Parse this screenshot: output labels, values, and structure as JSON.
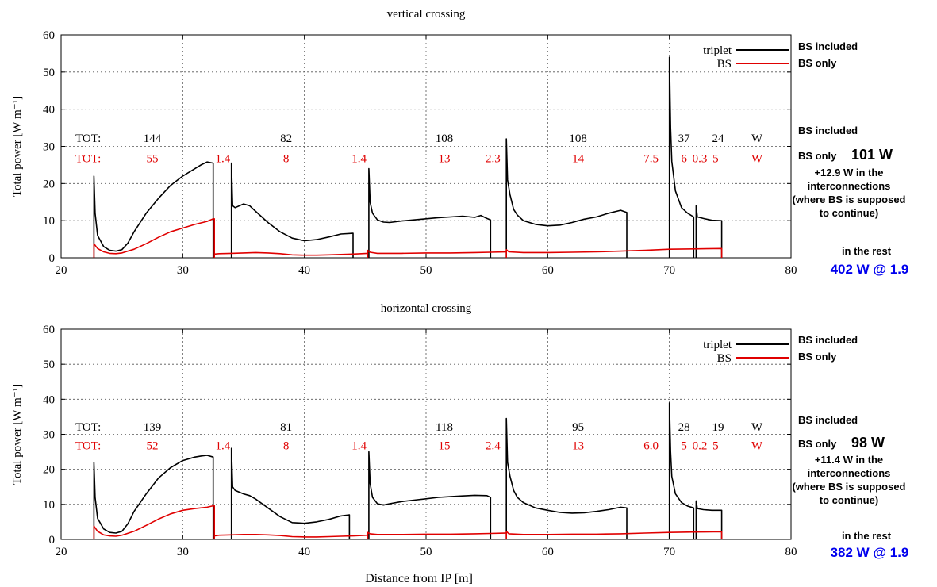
{
  "colors": {
    "triplet": "#000000",
    "bs": "#e00000",
    "rest": "#0000ee",
    "grid": "#555555"
  },
  "xlabel": "Distance from IP [m]",
  "ylabel": "Total power [W m⁻¹]",
  "chart_data": [
    {
      "type": "line",
      "title": "vertical crossing",
      "xlim": [
        20,
        80
      ],
      "ylim": [
        0,
        60
      ],
      "xticks": [
        "20",
        "30",
        "40",
        "50",
        "60",
        "70",
        "80"
      ],
      "yticks": [
        "0",
        "10",
        "20",
        "30",
        "40",
        "50",
        "60"
      ],
      "grid": true,
      "legend": "top-right",
      "series": [
        {
          "name": "triplet",
          "color": "#000000",
          "segments": [
            {
              "x": [
                22.7,
                22.8,
                23.0,
                23.5,
                24.0,
                24.5,
                25.0,
                25.5,
                26,
                27,
                28,
                29,
                30,
                31,
                31.5,
                32.0,
                32.5
              ],
              "y": [
                22,
                12,
                6,
                3,
                2,
                1.8,
                2.2,
                4,
                7,
                12,
                16,
                19.5,
                22,
                24,
                25,
                25.8,
                25.5
              ],
              "end": 0
            },
            {
              "x": [
                34.0,
                34.1,
                34.3,
                35,
                35.5,
                36,
                37,
                38,
                39,
                40,
                41,
                42,
                43,
                44.0
              ],
              "y": [
                25.5,
                14,
                13.5,
                14.5,
                14,
                12.5,
                9.5,
                7,
                5.3,
                4.6,
                4.9,
                5.6,
                6.4,
                6.6
              ],
              "end": 0
            },
            {
              "x": [
                45.3,
                45.4,
                45.6,
                46,
                46.5,
                47,
                48,
                49,
                50,
                51,
                52,
                53,
                54,
                54.5,
                55.0,
                55.3
              ],
              "y": [
                24,
                15,
                12,
                10.2,
                9.6,
                9.5,
                9.9,
                10.2,
                10.5,
                10.8,
                11,
                11.2,
                10.9,
                11.4,
                10.6,
                10.2
              ],
              "end": 0
            },
            {
              "x": [
                56.6,
                56.7,
                56.9,
                57.2,
                57.5,
                58,
                59,
                60,
                61,
                62,
                63,
                64,
                65,
                66,
                66.5
              ],
              "y": [
                32,
                21,
                17,
                13,
                11.5,
                10,
                9,
                8.6,
                8.8,
                9.5,
                10.4,
                11,
                12,
                12.8,
                12.2
              ],
              "end": 0
            },
            {
              "x": [
                70.0,
                70.1,
                70.2,
                70.5,
                71,
                71.5,
                72.0
              ],
              "y": [
                54,
                35,
                26,
                18,
                13.5,
                12,
                11
              ],
              "end": 0
            },
            {
              "x": [
                72.2,
                72.3,
                72.8,
                73.5,
                74.3
              ],
              "y": [
                14,
                11,
                10.6,
                10.1,
                10
              ],
              "end": 0
            }
          ]
        },
        {
          "name": "BS",
          "color": "#e00000",
          "segments": [
            {
              "x": [
                22.7,
                23.0,
                23.5,
                24.0,
                24.5,
                25,
                26,
                27,
                28,
                29,
                30,
                31,
                32,
                32.5,
                32.6
              ],
              "y": [
                3.8,
                2.5,
                1.6,
                1.2,
                1.1,
                1.3,
                2.3,
                3.8,
                5.5,
                7,
                8,
                9,
                9.8,
                10.5,
                10.5
              ],
              "end": 1
            },
            {
              "x": [
                32.6,
                33,
                34,
                35,
                36,
                37,
                38,
                39,
                40,
                41,
                42,
                43,
                44,
                45.2
              ],
              "y": [
                1,
                1.1,
                1.2,
                1.3,
                1.4,
                1.3,
                1.1,
                0.8,
                0.7,
                0.7,
                0.8,
                0.9,
                1.0,
                1.2
              ],
              "end": null
            },
            {
              "x": [
                45.2,
                45.4,
                46,
                48,
                50,
                52,
                54,
                55.3,
                56.6
              ],
              "y": [
                2,
                1.5,
                1.2,
                1.2,
                1.3,
                1.3,
                1.4,
                1.5,
                1.6
              ],
              "end": null
            },
            {
              "x": [
                56.6,
                56.8,
                58,
                60,
                62,
                64,
                66,
                68,
                70,
                72,
                74.3
              ],
              "y": [
                2.2,
                1.6,
                1.4,
                1.4,
                1.5,
                1.6,
                1.8,
                2.0,
                2.3,
                2.4,
                2.5
              ],
              "end": 0
            }
          ]
        }
      ],
      "tot_rows": [
        {
          "label": "TOT:",
          "color": "#000000",
          "items": [
            {
              "x": 27.5,
              "text": "144"
            },
            {
              "x": 38.5,
              "text": "82"
            },
            {
              "x": 51.5,
              "text": "108"
            },
            {
              "x": 62.5,
              "text": "108"
            },
            {
              "x": 71.2,
              "text": "37"
            },
            {
              "x": 74.0,
              "text": "24"
            },
            {
              "x": 77.2,
              "text": "W"
            }
          ]
        },
        {
          "label": "TOT:",
          "color": "#e00000",
          "items": [
            {
              "x": 27.5,
              "text": "55"
            },
            {
              "x": 33.3,
              "text": "1.4"
            },
            {
              "x": 38.5,
              "text": "8"
            },
            {
              "x": 44.5,
              "text": "1.4"
            },
            {
              "x": 51.5,
              "text": "13"
            },
            {
              "x": 55.5,
              "text": "2.3"
            },
            {
              "x": 62.5,
              "text": "14"
            },
            {
              "x": 68.5,
              "text": "7.5"
            },
            {
              "x": 71.2,
              "text": "6"
            },
            {
              "x": 72.5,
              "text": "0.3"
            },
            {
              "x": 73.8,
              "text": "5"
            },
            {
              "x": 77.2,
              "text": "W"
            }
          ]
        }
      ]
    },
    {
      "type": "line",
      "title": "horizontal crossing",
      "xlim": [
        20,
        80
      ],
      "ylim": [
        0,
        60
      ],
      "xticks": [
        "20",
        "30",
        "40",
        "50",
        "60",
        "70",
        "80"
      ],
      "yticks": [
        "0",
        "10",
        "20",
        "30",
        "40",
        "50",
        "60"
      ],
      "grid": true,
      "legend": "top-right",
      "series": [
        {
          "name": "triplet",
          "color": "#000000",
          "segments": [
            {
              "x": [
                22.7,
                22.8,
                23.0,
                23.5,
                24.0,
                24.5,
                25.0,
                25.5,
                26,
                27,
                28,
                29,
                30,
                31,
                31.5,
                32.0,
                32.5
              ],
              "y": [
                22,
                12,
                6,
                3,
                2,
                1.8,
                2.3,
                4.5,
                8,
                13,
                17.5,
                20.5,
                22.5,
                23.5,
                23.8,
                24,
                23.5
              ],
              "end": 0
            },
            {
              "x": [
                34.0,
                34.1,
                34.3,
                35,
                35.5,
                36,
                37,
                38,
                39,
                40,
                41,
                42,
                43,
                43.7
              ],
              "y": [
                26,
                15,
                14,
                13,
                12.5,
                11.5,
                9,
                6.5,
                4.8,
                4.6,
                5,
                5.7,
                6.7,
                7
              ],
              "end": 0
            },
            {
              "x": [
                45.3,
                45.4,
                45.6,
                46,
                46.5,
                47,
                48,
                49,
                50,
                51,
                52,
                53,
                54,
                55.0,
                55.3
              ],
              "y": [
                25,
                16,
                12,
                10.2,
                9.8,
                10.2,
                10.8,
                11.2,
                11.6,
                12,
                12.2,
                12.4,
                12.6,
                12.5,
                12
              ],
              "end": 0
            },
            {
              "x": [
                56.6,
                56.7,
                56.9,
                57.2,
                57.5,
                58,
                59,
                60,
                61,
                62,
                63,
                64,
                65,
                66,
                66.5
              ],
              "y": [
                34.5,
                22,
                18,
                14,
                12,
                10.5,
                9,
                8.3,
                7.7,
                7.5,
                7.6,
                8,
                8.5,
                9.2,
                9
              ],
              "end": 0
            },
            {
              "x": [
                70.0,
                70.1,
                70.2,
                70.5,
                71,
                71.5,
                72.0
              ],
              "y": [
                39,
                25,
                18,
                13,
                10.5,
                9.5,
                9
              ],
              "end": 0
            },
            {
              "x": [
                72.2,
                72.3,
                72.8,
                73.5,
                74.3
              ],
              "y": [
                11,
                8.8,
                8.5,
                8.3,
                8.3
              ],
              "end": 0
            }
          ]
        },
        {
          "name": "BS",
          "color": "#e00000",
          "segments": [
            {
              "x": [
                22.7,
                23.0,
                23.5,
                24.0,
                24.5,
                25,
                26,
                27,
                28,
                29,
                30,
                31,
                32,
                32.5,
                32.6
              ],
              "y": [
                3.8,
                2.3,
                1.3,
                1.0,
                0.9,
                1.2,
                2.3,
                4,
                5.8,
                7.3,
                8.3,
                8.8,
                9.2,
                9.6,
                9.6
              ],
              "end": 1
            },
            {
              "x": [
                32.6,
                33,
                34,
                35,
                36,
                37,
                38,
                39,
                40,
                41,
                42,
                43,
                44,
                45.2
              ],
              "y": [
                1,
                1.2,
                1.3,
                1.4,
                1.4,
                1.3,
                1.1,
                0.8,
                0.7,
                0.7,
                0.8,
                0.9,
                1.0,
                1.2
              ],
              "end": null
            },
            {
              "x": [
                45.2,
                45.4,
                46,
                48,
                50,
                52,
                54,
                55.3,
                56.6
              ],
              "y": [
                2,
                1.6,
                1.4,
                1.4,
                1.5,
                1.5,
                1.6,
                1.7,
                1.8
              ],
              "end": null
            },
            {
              "x": [
                56.6,
                56.8,
                58,
                60,
                62,
                64,
                66,
                68,
                70,
                72,
                74.3
              ],
              "y": [
                2.3,
                1.6,
                1.4,
                1.4,
                1.5,
                1.5,
                1.6,
                1.8,
                2.0,
                2.1,
                2.2
              ],
              "end": 0
            }
          ]
        }
      ],
      "tot_rows": [
        {
          "label": "TOT:",
          "color": "#000000",
          "items": [
            {
              "x": 27.5,
              "text": "139"
            },
            {
              "x": 38.5,
              "text": "81"
            },
            {
              "x": 51.5,
              "text": "118"
            },
            {
              "x": 62.5,
              "text": "95"
            },
            {
              "x": 71.2,
              "text": "28"
            },
            {
              "x": 74.0,
              "text": "19"
            },
            {
              "x": 77.2,
              "text": "W"
            }
          ]
        },
        {
          "label": "TOT:",
          "color": "#e00000",
          "items": [
            {
              "x": 27.5,
              "text": "52"
            },
            {
              "x": 33.3,
              "text": "1.4"
            },
            {
              "x": 38.5,
              "text": "8"
            },
            {
              "x": 44.5,
              "text": "1.4"
            },
            {
              "x": 51.5,
              "text": "15"
            },
            {
              "x": 55.5,
              "text": "2.4"
            },
            {
              "x": 62.5,
              "text": "13"
            },
            {
              "x": 68.5,
              "text": "6.0"
            },
            {
              "x": 71.2,
              "text": "5"
            },
            {
              "x": 72.5,
              "text": "0.2"
            },
            {
              "x": 73.8,
              "text": "5"
            },
            {
              "x": 77.2,
              "text": "W"
            }
          ]
        }
      ]
    }
  ],
  "annotations": [
    {
      "bs_included_top": "BS included",
      "bs_only_top": "BS only",
      "bs_included_mid": "BS included",
      "bs_only_label": "BS only",
      "bs_only_value": "101 W",
      "interconnect_lines": [
        "+12.9 W in the",
        "interconnections",
        "(where BS is supposed",
        "to continue)"
      ],
      "rest_label": "in the rest",
      "rest_value": "402 W @ 1.9"
    },
    {
      "bs_included_top": "BS included",
      "bs_only_top": "BS only",
      "bs_included_mid": "BS included",
      "bs_only_label": "BS only",
      "bs_only_value": "98 W",
      "interconnect_lines": [
        "+11.4 W in the",
        "interconnections",
        "(where BS is supposed",
        "to continue)"
      ],
      "rest_label": "in the rest",
      "rest_value": "382 W @ 1.9"
    }
  ]
}
